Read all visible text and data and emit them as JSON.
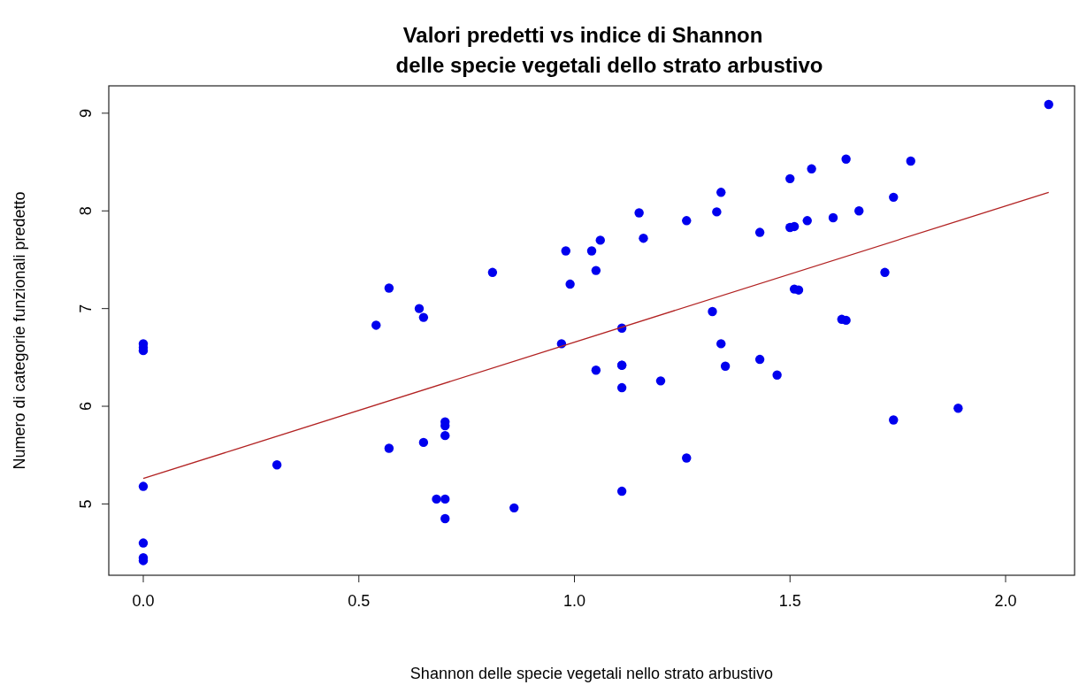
{
  "chart_data": {
    "type": "scatter",
    "title": "Valori predetti vs indice di Shannon\ndelle specie vegetali dello strato arbustivo",
    "xlabel": "Shannon delle specie vegetali nello strato arbustivo",
    "ylabel": "Numero di categorie funzionali predetto",
    "xlim": [
      -0.08,
      2.16
    ],
    "ylim": [
      4.27,
      9.28
    ],
    "xticks": [
      {
        "value": 0,
        "label": "0.0"
      },
      {
        "value": 0.5,
        "label": "0.5"
      },
      {
        "value": 1,
        "label": "1.0"
      },
      {
        "value": 1.5,
        "label": "1.5"
      },
      {
        "value": 2,
        "label": "2.0"
      }
    ],
    "yticks": [
      5,
      6,
      7,
      8,
      9
    ],
    "grid": false,
    "series": [
      {
        "marker": "circle",
        "color": "#0000ee",
        "x": [
          0,
          0,
          0,
          0,
          0,
          0,
          0,
          0.31,
          0.54,
          0.57,
          0.64,
          0.65,
          0.57,
          0.65,
          0.7,
          0.7,
          0.7,
          0.68,
          0.7,
          0.7,
          0.81,
          0.86,
          0.98,
          0.99,
          0.97,
          1.04,
          1.06,
          1.05,
          1.15,
          1.16,
          1.26,
          1.33,
          1.34,
          1.43,
          1.5,
          1.55,
          1.5,
          1.51,
          1.54,
          1.6,
          1.63,
          1.66,
          1.74,
          1.78,
          2.1,
          1.72,
          1.05,
          1.11,
          1.11,
          1.11,
          1.11,
          1.2,
          1.11,
          1.26,
          1.32,
          1.34,
          1.35,
          1.43,
          1.47,
          1.51,
          1.52,
          1.62,
          1.63,
          1.74,
          1.89
        ],
        "values": [
          6.64,
          6.6,
          6.57,
          5.18,
          4.6,
          4.45,
          4.42,
          5.4,
          6.83,
          7.21,
          7.0,
          6.91,
          5.57,
          5.63,
          5.84,
          5.8,
          5.7,
          5.05,
          5.05,
          4.85,
          7.37,
          4.96,
          7.59,
          7.25,
          6.64,
          7.59,
          7.7,
          7.39,
          7.98,
          7.72,
          7.9,
          7.99,
          8.19,
          7.78,
          8.33,
          8.43,
          7.83,
          7.84,
          7.9,
          7.93,
          8.53,
          8.0,
          8.14,
          8.51,
          9.09,
          7.37,
          6.37,
          6.8,
          6.42,
          6.42,
          6.19,
          6.26,
          5.13,
          5.47,
          6.97,
          6.64,
          6.41,
          6.48,
          6.32,
          7.2,
          7.19,
          6.89,
          6.88,
          5.86,
          5.98
        ]
      },
      {
        "type": "line",
        "color": "#b22222",
        "x": [
          0,
          2.1
        ],
        "values": [
          5.26,
          8.19
        ]
      }
    ]
  }
}
